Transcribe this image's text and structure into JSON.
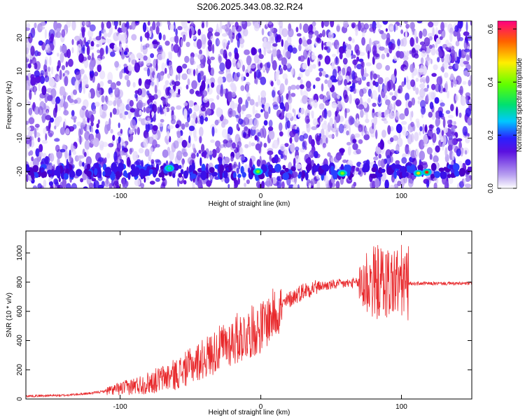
{
  "title": "S206.2025.343.08.32.R24",
  "chart_data": [
    {
      "type": "heatmap",
      "xlabel": "Height of straight line (km)",
      "ylabel": "Frequency (Hz)",
      "xlim": [
        -167,
        150
      ],
      "ylim": [
        -25,
        25
      ],
      "xticks": [
        -100,
        0,
        100
      ],
      "yticks": [
        -20,
        -10,
        0,
        10,
        20
      ],
      "colorbar": {
        "label": "Normalized spectral amplitude",
        "range": [
          0,
          0.63
        ],
        "ticks": [
          0.0,
          0.2,
          0.4,
          0.6
        ]
      },
      "peaks": [
        {
          "x": -65,
          "y": -19,
          "value": 0.22
        },
        {
          "x": -2,
          "y": -20,
          "value": 0.4
        },
        {
          "x": 58,
          "y": -20.5,
          "value": 0.42
        },
        {
          "x": 112,
          "y": -20.5,
          "value": 0.5
        },
        {
          "x": 118,
          "y": -20.2,
          "value": 0.62
        }
      ]
    },
    {
      "type": "line",
      "xlabel": "Height of straight line (km)",
      "ylabel": "SNR (10 * v/v)",
      "xlim": [
        -167,
        150
      ],
      "ylim": [
        0,
        1150
      ],
      "xticks": [
        -100,
        0,
        100
      ],
      "yticks": [
        0,
        200,
        400,
        600,
        800,
        1000
      ],
      "color": "#e8282b",
      "profile": [
        [
          -167,
          20
        ],
        [
          -140,
          25
        ],
        [
          -120,
          40
        ],
        [
          -100,
          70
        ],
        [
          -80,
          110
        ],
        [
          -60,
          170
        ],
        [
          -40,
          280
        ],
        [
          -20,
          400
        ],
        [
          0,
          490
        ],
        [
          10,
          590
        ],
        [
          20,
          680
        ],
        [
          30,
          740
        ],
        [
          40,
          770
        ],
        [
          50,
          780
        ],
        [
          60,
          790
        ],
        [
          70,
          795
        ],
        [
          80,
          800
        ],
        [
          100,
          800
        ],
        [
          105,
          790
        ],
        [
          150,
          790
        ]
      ]
    }
  ]
}
